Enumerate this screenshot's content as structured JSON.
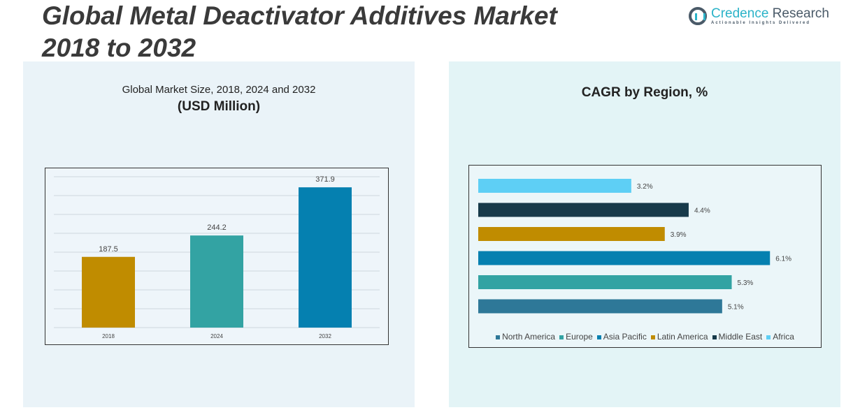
{
  "title": "Global Metal Deactivator Additives Market 2018 to 2032",
  "title_line1": "Global Metal Deactivator Additives Market",
  "title_line2": "2018 to 2032",
  "logo": {
    "name_a": "Credence",
    "name_b": " Research",
    "tagline": "Actionable Insights Delivered"
  },
  "chart_data": [
    {
      "type": "bar",
      "title": "Global Market Size, 2018, 2024 and 2032",
      "subtitle": "(USD Million)",
      "categories": [
        "2018",
        "2024",
        "2032"
      ],
      "values": [
        187.5,
        244.2,
        371.9
      ],
      "value_labels": [
        "187.5",
        "244.2",
        "371.9"
      ],
      "colors": [
        "#c08c00",
        "#33a3a3",
        "#0580b0"
      ],
      "ylim": [
        0,
        400
      ],
      "grid": true
    },
    {
      "type": "bar",
      "orientation": "horizontal",
      "title": "CAGR by Region, %",
      "categories": [
        "North America",
        "Europe",
        "Asia Pacific",
        "Latin America",
        "Middle East",
        "Africa"
      ],
      "values": [
        5.1,
        5.3,
        6.1,
        3.9,
        4.4,
        3.2
      ],
      "value_labels": [
        "5.1%",
        "5.3%",
        "6.1%",
        "3.9%",
        "4.4%",
        "3.2%"
      ],
      "colors": [
        "#2e7898",
        "#33a3a3",
        "#0580b0",
        "#c08c00",
        "#173a4a",
        "#5ecff5"
      ],
      "legend": "bottom",
      "grid": false
    }
  ]
}
